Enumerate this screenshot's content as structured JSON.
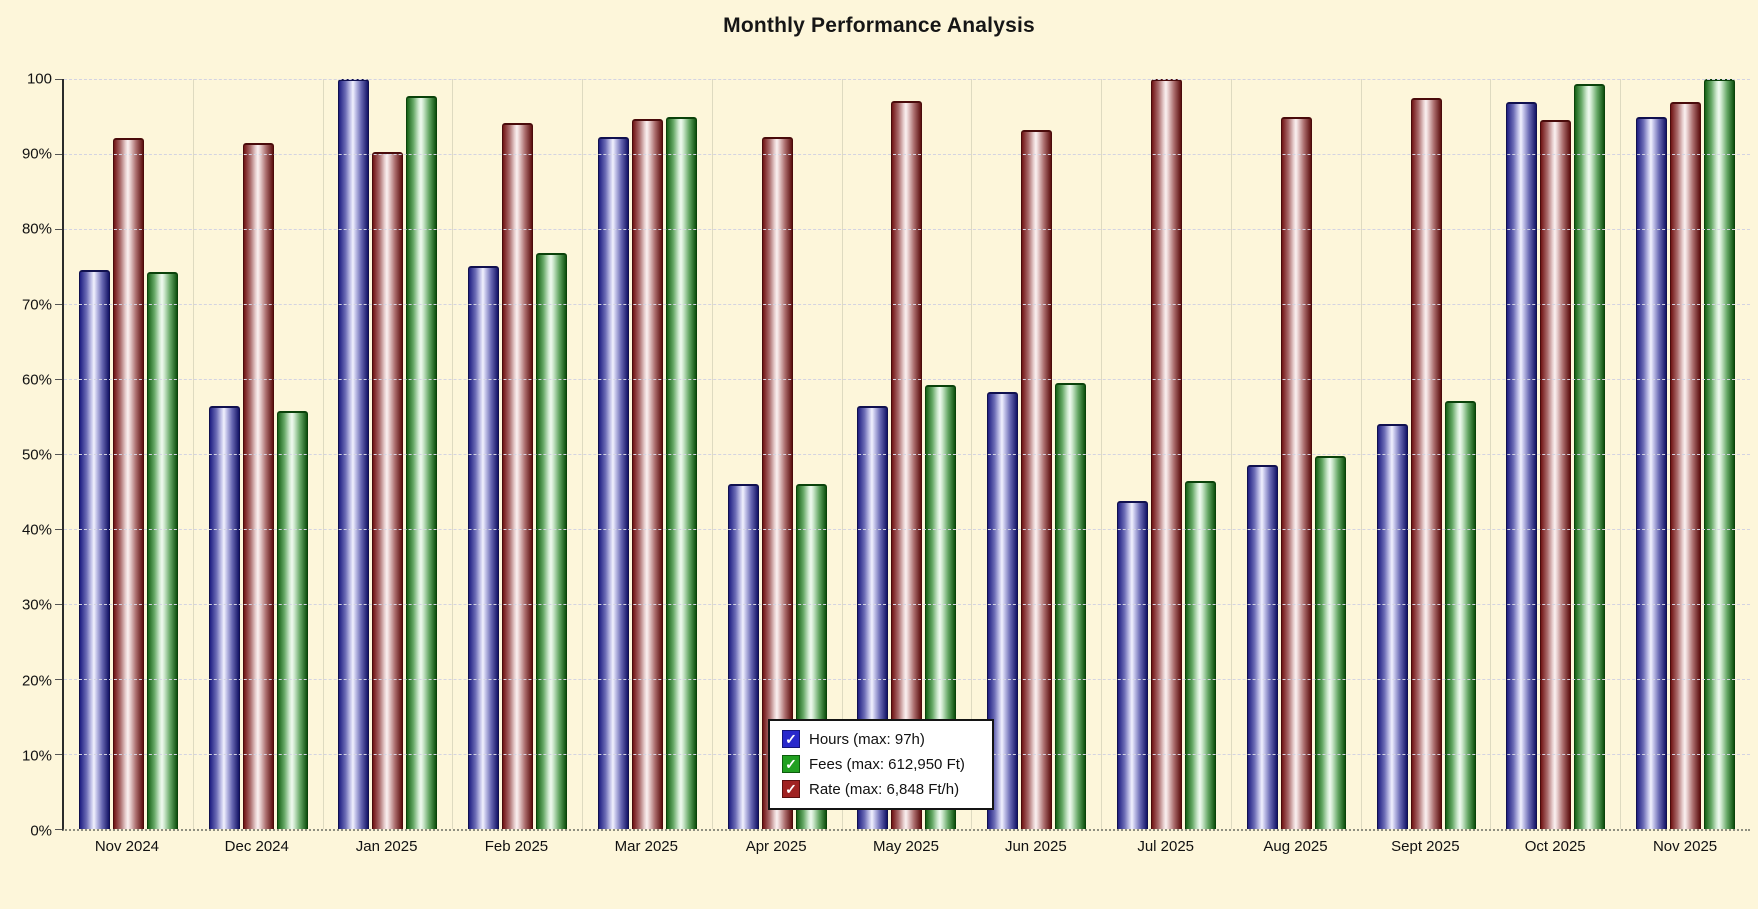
{
  "title": "Monthly Performance Analysis",
  "colors": {
    "background": "#fdf6da",
    "bar_blue": "#1e1e82",
    "bar_red": "#701414",
    "bar_green": "#156015",
    "legend_swatch_blue": "#2929cc",
    "legend_swatch_green": "#21a021",
    "legend_swatch_red": "#a02222",
    "gridline": "#d3d3e2"
  },
  "legend": {
    "items": [
      {
        "label": "Hours (max: 97h)",
        "color": "#2929cc",
        "border": "#14147a",
        "check_icon": "✓"
      },
      {
        "label": "Fees (max: 612,950 Ft)",
        "color": "#21a021",
        "border": "#0c5c0c",
        "check_icon": "✓"
      },
      {
        "label": "Rate (max: 6,848 Ft/h)",
        "color": "#a02222",
        "border": "#5c0f0f",
        "check_icon": "✓"
      }
    ]
  },
  "chart_data": {
    "type": "bar",
    "title": "Monthly Performance Analysis",
    "xlabel": "",
    "ylabel": "",
    "unit": "percent of series maximum",
    "ylim": [
      0,
      100
    ],
    "grid": "horizontal-dashed",
    "legend_position": "bottom-center-overlay",
    "y_ticks": [
      {
        "value": 100,
        "label": "100"
      },
      {
        "value": 90,
        "label": "90%"
      },
      {
        "value": 80,
        "label": "80%"
      },
      {
        "value": 70,
        "label": "70%"
      },
      {
        "value": 60,
        "label": "60%"
      },
      {
        "value": 50,
        "label": "50%"
      },
      {
        "value": 40,
        "label": "40%"
      },
      {
        "value": 30,
        "label": "30%"
      },
      {
        "value": 20,
        "label": "20%"
      },
      {
        "value": 10,
        "label": "10%"
      },
      {
        "value": 0,
        "label": "0%"
      }
    ],
    "categories": [
      "Nov 2024",
      "Dec 2024",
      "Jan 2025",
      "Feb 2025",
      "Mar 2025",
      "Apr 2025",
      "May 2025",
      "Jun 2025",
      "Jul 2025",
      "Aug 2025",
      "Sept 2025",
      "Oct 2025",
      "Nov 2025"
    ],
    "bar_display_order": [
      "Hours",
      "Rate",
      "Fees"
    ],
    "series": [
      {
        "name": "Hours",
        "legend_label": "Hours (max: 97h)",
        "max_caption": "97h",
        "color_key": "blue",
        "values_pct": [
          74.5,
          56.4,
          100,
          75.1,
          92.3,
          46,
          56.4,
          58.3,
          43.8,
          48.5,
          54,
          96.9,
          95
        ]
      },
      {
        "name": "Rate",
        "legend_label": "Rate (max: 6,848 Ft/h)",
        "max_caption": "6,848 Ft/h",
        "color_key": "red",
        "values_pct": [
          92.2,
          91.5,
          90.3,
          94.2,
          94.7,
          92.3,
          97.1,
          93.2,
          100,
          94.9,
          97.5,
          94.5,
          97
        ]
      },
      {
        "name": "Fees",
        "legend_label": "Fees (max: 612,950 Ft)",
        "max_caption": "612,950 Ft",
        "color_key": "green",
        "values_pct": [
          74.3,
          55.8,
          97.7,
          76.8,
          94.9,
          46,
          59.2,
          59.5,
          46.4,
          49.8,
          57.1,
          99.3,
          100
        ]
      }
    ]
  }
}
